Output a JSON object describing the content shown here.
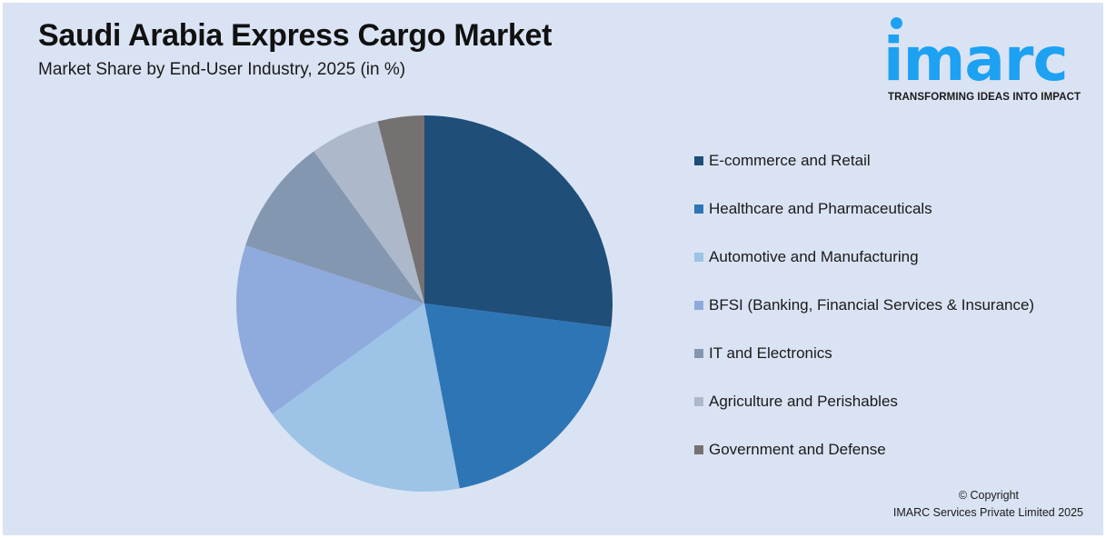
{
  "header": {
    "title": "Saudi Arabia Express Cargo Market",
    "subtitle": "Market Share by End-User Industry, 2025 (in %)"
  },
  "logo": {
    "wordmark": "imarc",
    "tagline": "TRANSFORMING IDEAS INTO IMPACT",
    "color": "#1da1f2"
  },
  "footer": {
    "copyright_line1": "© Copyright",
    "copyright_line2": "IMARC Services Private Limited 2025"
  },
  "chart_data": {
    "type": "pie",
    "title": "Saudi Arabia Express Cargo Market",
    "subtitle": "Market Share by End-User Industry, 2025 (in %)",
    "start_angle": "12 o'clock, clockwise",
    "legend_position": "right",
    "categories": [
      "E-commerce and Retail",
      "Healthcare and Pharmaceuticals",
      "Automotive and Manufacturing",
      "BFSI (Banking, Financial Services & Insurance)",
      "IT and Electronics",
      "Agriculture and Perishables",
      "Government and Defense"
    ],
    "values": [
      27,
      20,
      18,
      15,
      10,
      6,
      4
    ],
    "colors": [
      "#1f4e79",
      "#2e75b6",
      "#9dc3e6",
      "#8faadc",
      "#8497b0",
      "#adb9ca",
      "#767171"
    ],
    "unit": "%"
  }
}
